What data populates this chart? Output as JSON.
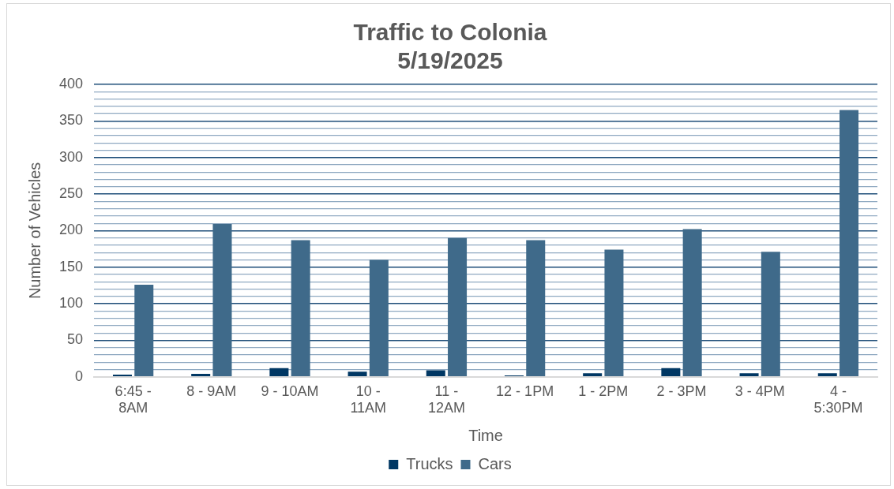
{
  "chart_data": {
    "type": "bar",
    "title": "Traffic to Colonia\n5/19/2025",
    "xlabel": "Time",
    "ylabel": "Number of Vehicles",
    "categories": [
      "6:45 - 8AM",
      "8 - 9AM",
      "9 - 10AM",
      "10 - 11AM",
      "11 - 12AM",
      "12 - 1PM",
      "1 - 2PM",
      "2 - 3PM",
      "3 - 4PM",
      "4 - 5:30PM"
    ],
    "series": [
      {
        "name": "Trucks",
        "color": "#003763",
        "values": [
          3,
          4,
          12,
          7,
          9,
          2,
          5,
          12,
          5,
          5
        ]
      },
      {
        "name": "Cars",
        "color": "#3f6a8a",
        "values": [
          126,
          209,
          187,
          160,
          190,
          187,
          174,
          202,
          171,
          365
        ]
      }
    ],
    "ylim": [
      0,
      400
    ],
    "yticks": [
      0,
      {
        "value": 10,
        "label": null
      },
      {
        "value": 20,
        "label": null
      },
      {
        "value": 30,
        "label": null
      },
      {
        "value": 40,
        "label": null
      },
      50,
      {
        "value": 60,
        "label": null
      },
      {
        "value": 70,
        "label": null
      },
      {
        "value": 80,
        "label": null
      },
      {
        "value": 90,
        "label": null
      },
      100,
      {
        "value": 110,
        "label": null
      },
      {
        "value": 120,
        "label": null
      },
      {
        "value": 130,
        "label": null
      },
      {
        "value": 140,
        "label": null
      },
      150,
      {
        "value": 160,
        "label": null
      },
      {
        "value": 170,
        "label": null
      },
      {
        "value": 180,
        "label": null
      },
      {
        "value": 190,
        "label": null
      },
      200,
      {
        "value": 210,
        "label": null
      },
      {
        "value": 220,
        "label": null
      },
      {
        "value": 230,
        "label": null
      },
      {
        "value": 240,
        "label": null
      },
      250,
      {
        "value": 260,
        "label": null
      },
      {
        "value": 270,
        "label": null
      },
      {
        "value": 280,
        "label": null
      },
      {
        "value": 290,
        "label": null
      },
      300,
      {
        "value": 310,
        "label": null
      },
      {
        "value": 320,
        "label": null
      },
      {
        "value": 330,
        "label": null
      },
      {
        "value": 340,
        "label": null
      },
      350,
      {
        "value": 360,
        "label": null
      },
      {
        "value": 370,
        "label": null
      },
      {
        "value": 380,
        "label": null
      },
      {
        "value": 390,
        "label": null
      },
      400
    ],
    "grid": true,
    "legend": "bottom"
  }
}
